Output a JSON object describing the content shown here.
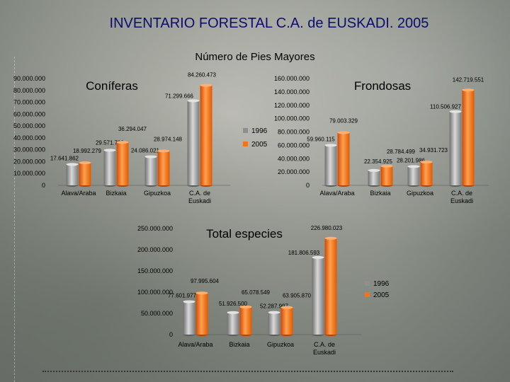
{
  "slide": {
    "title": "INVENTARIO FORESTAL C.A. de EUSKADI. 2005",
    "subtitle": "Número de Pies Mayores"
  },
  "chart_data": [
    {
      "type": "bar",
      "title": "Coníferas",
      "categories": [
        "Alava/Araba",
        "Bizkaia",
        "Gipuzkoa",
        "C.A. de Euskadi"
      ],
      "series": [
        {
          "name": "1996",
          "values": [
            17641862,
            29571793,
            24086021,
            71299666
          ],
          "labels": [
            "17.641.862",
            "29.571.793",
            "24.086.021",
            "71.299.666"
          ]
        },
        {
          "name": "2005",
          "values": [
            18992279,
            36294047,
            28974148,
            84260473
          ],
          "labels": [
            "18.992.279",
            "36.294.047",
            "28.974.148",
            "84.260.473"
          ]
        }
      ],
      "yticks": [
        "0",
        "10.000.000",
        "20.000.000",
        "30.000.000",
        "40.000.000",
        "50.000.000",
        "60.000.000",
        "70.000.000",
        "80.000.000",
        "90.000.000"
      ],
      "ylim": [
        0,
        90000000
      ],
      "legend": "right"
    },
    {
      "type": "bar",
      "title": "Frondosas",
      "categories": [
        "Alava/Araba",
        "Bizkaia",
        "Gipuzkoa",
        "C.A. de Euskadi"
      ],
      "series": [
        {
          "name": "1996",
          "values": [
            59960115,
            22354925,
            28201986,
            110506927
          ],
          "labels": [
            "59.960.115",
            "22.354.925",
            "28.201.986",
            "110.506.927"
          ]
        },
        {
          "name": "2005",
          "values": [
            79003329,
            28784499,
            34931723,
            142719551
          ],
          "labels": [
            "79.003.329",
            "28.784.499",
            "34.931.723",
            "142.719.551"
          ]
        }
      ],
      "yticks": [
        "0",
        "20.000.000",
        "40.000.000",
        "60.000.000",
        "80.000.000",
        "100.000.000",
        "120.000.000",
        "140.000.000",
        "160.000.000"
      ],
      "ylim": [
        0,
        160000000
      ],
      "legend": "right"
    },
    {
      "type": "bar",
      "title": "Total especies",
      "categories": [
        "Alava/Araba",
        "Bizkaia",
        "Gipuzkoa",
        "C.A. de Euskadi"
      ],
      "series": [
        {
          "name": "1996",
          "values": [
            77601977,
            51926500,
            52287997,
            181806593
          ],
          "labels": [
            "77.601.977",
            "51.926.500",
            "52.287.997",
            "181.806.593"
          ]
        },
        {
          "name": "2005",
          "values": [
            97995604,
            65078549,
            63905870,
            226980023
          ],
          "labels": [
            "97.995.604",
            "65.078.549",
            "63.905.870",
            "226.980.023"
          ]
        }
      ],
      "yticks": [
        "0",
        "50.000.000",
        "100.000.000",
        "150.000.000",
        "200.000.000",
        "250.000.000"
      ],
      "ylim": [
        0,
        250000000
      ],
      "legend": "right"
    }
  ],
  "colors": {
    "s1996": "#8f8f8f",
    "s2005": "#ff7010",
    "title": "#0d0d70"
  }
}
